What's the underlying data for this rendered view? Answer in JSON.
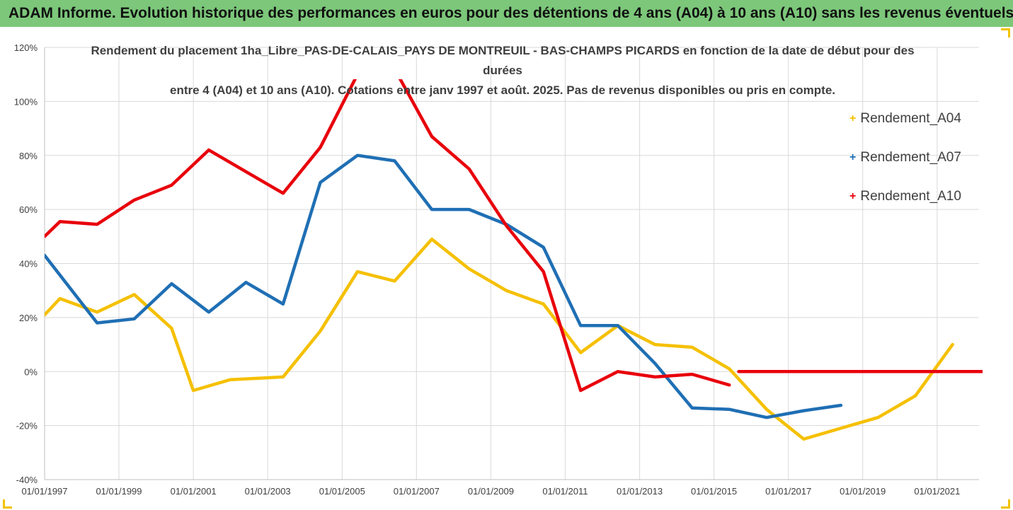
{
  "header": {
    "title": "ADAM Informe. Evolution historique des performances en euros pour des détentions de 4 ans (A04) à 10 ans (A10) sans les revenus éventuels"
  },
  "colors": {
    "header_bg": "#7cc77a",
    "frame_accent": "#f2c200",
    "grid": "#d9d9d9",
    "A04": "#f5c000",
    "A07": "#1f6fb4",
    "A10": "#e8000b"
  },
  "chart_data": {
    "type": "line",
    "title_line1": "Rendement du placement 1ha_Libre_PAS-DE-CALAIS_PAYS DE MONTREUIL - BAS-CHAMPS PICARDS en fonction de la date de début pour des durées",
    "title_line2": "entre 4 (A04) et 10 ans (A10). Cotations entre janv 1997 et août. 2025. Pas de revenus disponibles ou pris en compte.",
    "xlabel": "",
    "ylabel": "",
    "xlim": [
      "1997-01-01",
      "2022-06-01"
    ],
    "ylim": [
      -0.4,
      1.2
    ],
    "y_ticks": [
      {
        "v": 1.2,
        "label": "120%"
      },
      {
        "v": 1.0,
        "label": "100%"
      },
      {
        "v": 0.8,
        "label": "80%"
      },
      {
        "v": 0.6,
        "label": "60%"
      },
      {
        "v": 0.4,
        "label": "40%"
      },
      {
        "v": 0.2,
        "label": "20%"
      },
      {
        "v": 0.0,
        "label": "0%"
      },
      {
        "v": -0.2,
        "label": "-20%"
      },
      {
        "v": -0.4,
        "label": "-40%"
      }
    ],
    "x_ticks": [
      {
        "d": "1997-01-01",
        "label": "01/01/1997"
      },
      {
        "d": "1999-01-01",
        "label": "01/01/1999"
      },
      {
        "d": "2001-01-01",
        "label": "01/01/2001"
      },
      {
        "d": "2003-01-01",
        "label": "01/01/2003"
      },
      {
        "d": "2005-01-01",
        "label": "01/01/2005"
      },
      {
        "d": "2007-01-01",
        "label": "01/01/2007"
      },
      {
        "d": "2009-01-01",
        "label": "01/01/2009"
      },
      {
        "d": "2011-01-01",
        "label": "01/01/2011"
      },
      {
        "d": "2013-01-01",
        "label": "01/01/2013"
      },
      {
        "d": "2015-01-01",
        "label": "01/01/2015"
      },
      {
        "d": "2017-01-01",
        "label": "01/01/2017"
      },
      {
        "d": "2019-01-01",
        "label": "01/01/2019"
      },
      {
        "d": "2021-01-01",
        "label": "01/01/2021"
      }
    ],
    "grid": true,
    "legend_position": "right",
    "series": [
      {
        "name": "Rendement_A04",
        "color": "#f5c000",
        "points": [
          [
            "1997-01-01",
            0.21
          ],
          [
            "1997-06-01",
            0.27
          ],
          [
            "1998-06-01",
            0.22
          ],
          [
            "1999-06-01",
            0.285
          ],
          [
            "2000-06-01",
            0.16
          ],
          [
            "2001-01-01",
            -0.07
          ],
          [
            "2002-01-01",
            -0.03
          ],
          [
            "2003-06-01",
            -0.02
          ],
          [
            "2004-06-01",
            0.15
          ],
          [
            "2005-06-01",
            0.37
          ],
          [
            "2006-06-01",
            0.335
          ],
          [
            "2007-06-01",
            0.49
          ],
          [
            "2008-06-01",
            0.38
          ],
          [
            "2009-06-01",
            0.3
          ],
          [
            "2010-06-01",
            0.25
          ],
          [
            "2011-06-01",
            0.07
          ],
          [
            "2012-06-01",
            0.17
          ],
          [
            "2013-06-01",
            0.1
          ],
          [
            "2014-06-01",
            0.09
          ],
          [
            "2015-06-01",
            0.01
          ],
          [
            "2016-06-01",
            -0.14
          ],
          [
            "2017-06-01",
            -0.25
          ],
          [
            "2018-06-01",
            -0.21
          ],
          [
            "2019-06-01",
            -0.17
          ],
          [
            "2020-06-01",
            -0.09
          ],
          [
            "2021-06-01",
            0.1
          ]
        ]
      },
      {
        "name": "Rendement_A07",
        "color": "#1f6fb4",
        "points": [
          [
            "1997-01-01",
            0.43
          ],
          [
            "1998-06-01",
            0.18
          ],
          [
            "1999-06-01",
            0.195
          ],
          [
            "2000-06-01",
            0.325
          ],
          [
            "2001-06-01",
            0.22
          ],
          [
            "2002-06-01",
            0.33
          ],
          [
            "2003-06-01",
            0.25
          ],
          [
            "2004-06-01",
            0.7
          ],
          [
            "2005-06-01",
            0.8
          ],
          [
            "2006-06-01",
            0.78
          ],
          [
            "2007-06-01",
            0.6
          ],
          [
            "2008-06-01",
            0.6
          ],
          [
            "2009-06-01",
            0.545
          ],
          [
            "2010-06-01",
            0.46
          ],
          [
            "2011-06-01",
            0.17
          ],
          [
            "2012-06-01",
            0.17
          ],
          [
            "2013-06-01",
            0.03
          ],
          [
            "2014-06-01",
            -0.135
          ],
          [
            "2015-06-01",
            -0.14
          ],
          [
            "2016-06-01",
            -0.17
          ],
          [
            "2017-06-01",
            -0.145
          ],
          [
            "2018-06-01",
            -0.125
          ]
        ]
      },
      {
        "name": "Rendement_A10",
        "color": "#e8000b",
        "points": [
          [
            "1997-01-01",
            0.5
          ],
          [
            "1997-06-01",
            0.555
          ],
          [
            "1998-06-01",
            0.545
          ],
          [
            "1999-06-01",
            0.635
          ],
          [
            "2000-06-01",
            0.69
          ],
          [
            "2001-06-01",
            0.82
          ],
          [
            "2002-06-01",
            0.74
          ],
          [
            "2003-06-01",
            0.66
          ],
          [
            "2004-06-01",
            0.83
          ],
          [
            "2005-06-01",
            1.1
          ],
          [
            "2005-08-01",
            1.12
          ],
          [
            "2006-06-01",
            1.12
          ],
          [
            "2007-06-01",
            0.87
          ],
          [
            "2008-06-01",
            0.75
          ],
          [
            "2009-06-01",
            0.54
          ],
          [
            "2010-06-01",
            0.37
          ],
          [
            "2011-06-01",
            -0.07
          ],
          [
            "2012-06-01",
            0.0
          ],
          [
            "2013-06-01",
            -0.02
          ],
          [
            "2014-06-01",
            -0.01
          ],
          [
            "2015-06-01",
            -0.05
          ]
        ]
      },
      {
        "name": "Rendement_A10_zero",
        "color": "#e8000b",
        "points": [
          [
            "2015-09-01",
            0.0
          ],
          [
            "2022-06-01",
            0.0
          ]
        ]
      }
    ]
  }
}
